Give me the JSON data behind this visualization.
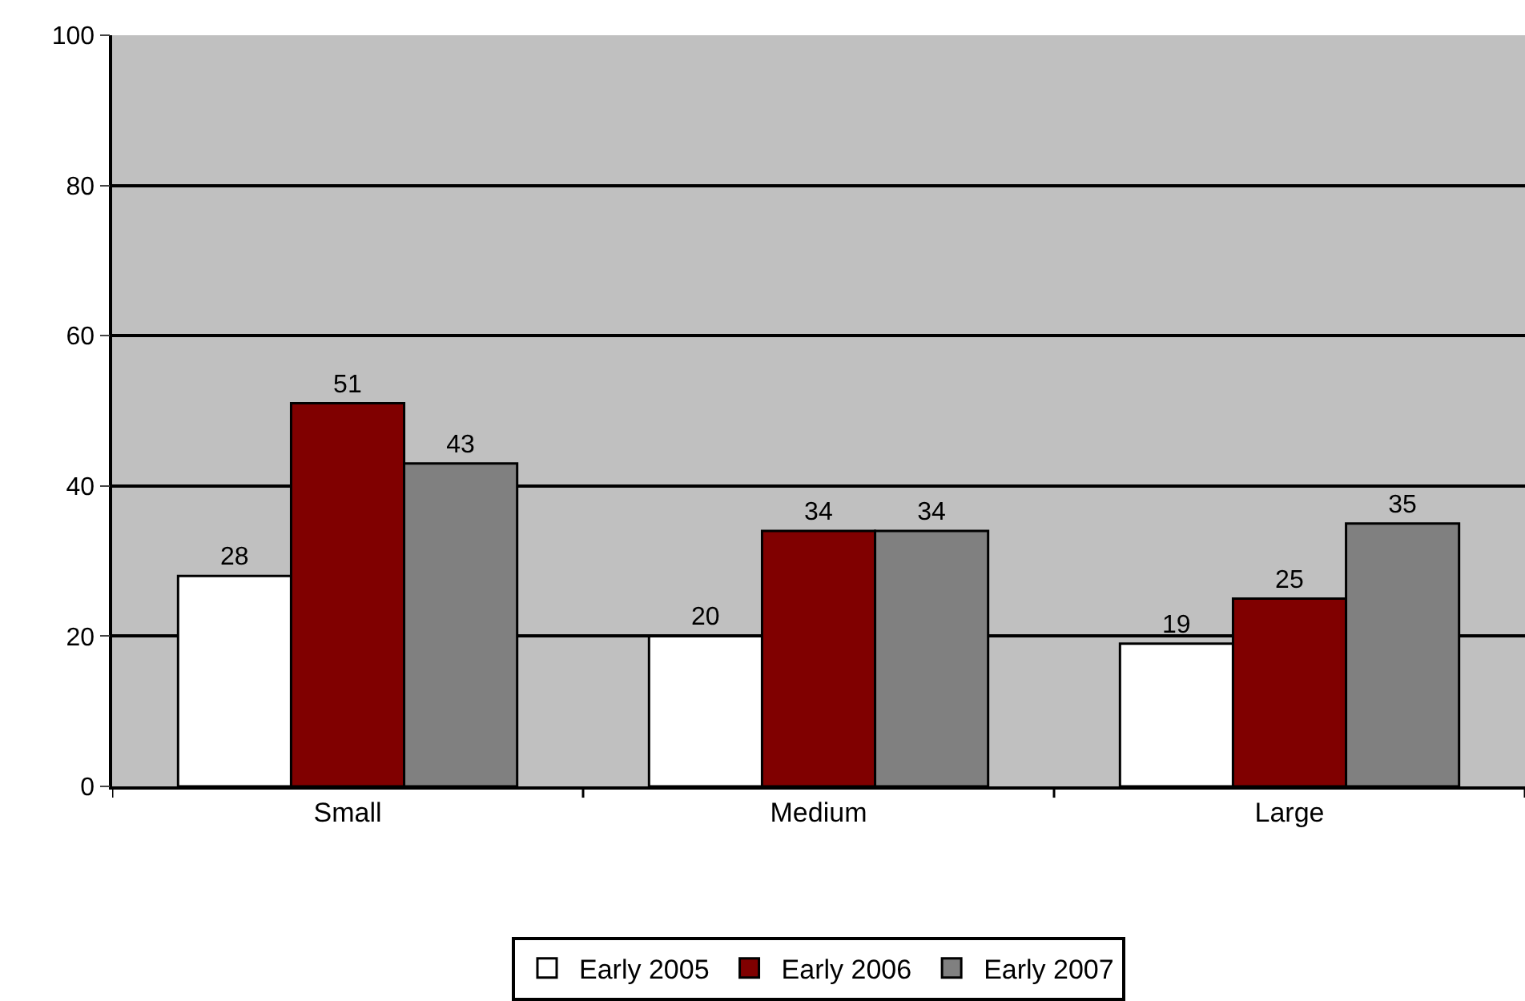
{
  "chart_data": {
    "type": "bar",
    "categories": [
      "Small",
      "Medium",
      "Large"
    ],
    "series": [
      {
        "name": "Early 2005",
        "color": "#ffffff",
        "values": [
          28,
          20,
          19
        ]
      },
      {
        "name": "Early 2006",
        "color": "#800000",
        "values": [
          51,
          34,
          25
        ]
      },
      {
        "name": "Early 2007",
        "color": "#808080",
        "values": [
          43,
          34,
          35
        ]
      }
    ],
    "ylim": [
      0,
      100
    ],
    "yticks": [
      0,
      20,
      40,
      60,
      80,
      100
    ],
    "grid": "y",
    "legend": "bottom",
    "data_labels": true
  }
}
